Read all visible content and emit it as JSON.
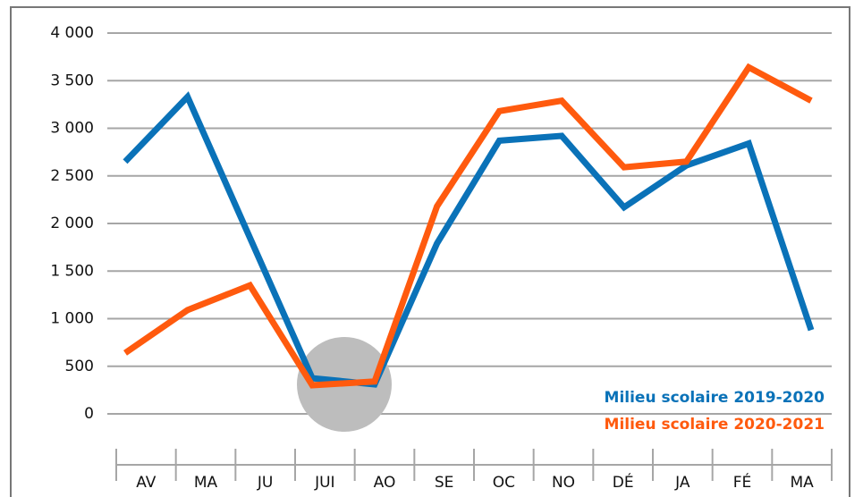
{
  "chart_data": {
    "type": "line",
    "categories": [
      "AV",
      "MA",
      "JU",
      "JUI",
      "AO",
      "SE",
      "OC",
      "NO",
      "DÉ",
      "JA",
      "FÉ",
      "MA"
    ],
    "series": [
      {
        "name": "Milieu scolaire 2019-2020",
        "color": "#0a72b8",
        "values": [
          2650,
          3330,
          1850,
          375,
          310,
          1790,
          2870,
          2920,
          2170,
          2610,
          2840,
          880
        ]
      },
      {
        "name": "Milieu scolaire 2020-2021",
        "color": "#ff5a0e",
        "values": [
          640,
          1090,
          1350,
          300,
          340,
          2180,
          3180,
          3290,
          2590,
          2650,
          3640,
          3290
        ]
      }
    ],
    "ylim": [
      0,
      4000
    ],
    "yticks": [
      0,
      500,
      {
        "value": 1000,
        "label": "1 000"
      },
      {
        "value": 1500,
        "label": "1 500"
      },
      {
        "value": 2000,
        "label": "2 000"
      },
      {
        "value": 2500,
        "label": "2 500"
      },
      {
        "value": 3000,
        "label": "3 000"
      },
      {
        "value": 3500,
        "label": "3 500"
      },
      {
        "value": 4000,
        "label": "4 000"
      }
    ],
    "grid": true,
    "legend": "lower right"
  }
}
